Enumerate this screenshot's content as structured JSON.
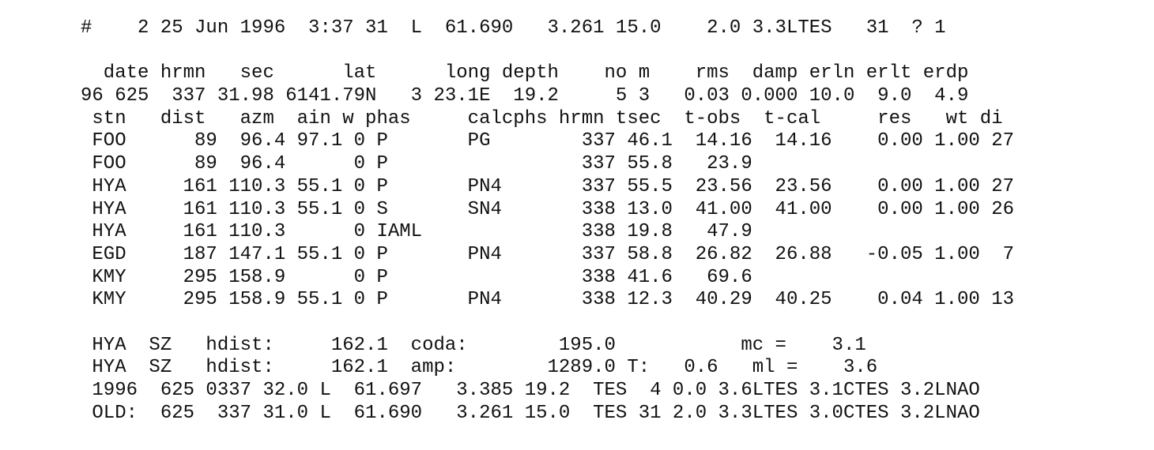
{
  "document": {
    "lines": [
      "#    2 25 Jun 1996  3:37 31  L  61.690   3.261 15.0    2.0 3.3LTES   31  ? 1",
      "",
      "  date hrmn   sec      lat      long depth    no m    rms  damp erln erlt erdp",
      "96 625  337 31.98 6141.79N   3 23.1E  19.2     5 3   0.03 0.000 10.0  9.0  4.9",
      " stn   dist   azm  ain w phas     calcphs hrmn tsec  t-obs  t-cal     res   wt di",
      " FOO      89  96.4 97.1 0 P       PG        337 46.1  14.16  14.16    0.00 1.00 27",
      " FOO      89  96.4      0 P                 337 55.8   23.9",
      " HYA     161 110.3 55.1 0 P       PN4       337 55.5  23.56  23.56    0.00 1.00 27",
      " HYA     161 110.3 55.1 0 S       SN4       338 13.0  41.00  41.00    0.00 1.00 26",
      " HYA     161 110.3      0 IAML              338 19.8   47.9",
      " EGD     187 147.1 55.1 0 P       PN4       337 58.8  26.82  26.88   -0.05 1.00  7",
      " KMY     295 158.9      0 P                 338 41.6   69.6",
      " KMY     295 158.9 55.1 0 P       PN4       338 12.3  40.29  40.25    0.04 1.00 13",
      "",
      " HYA  SZ   hdist:     162.1  coda:        195.0           mc =    3.1",
      " HYA  SZ   hdist:     162.1  amp:        1289.0 T:   0.6   ml =    3.6",
      " 1996  625 0337 32.0 L  61.697   3.385 19.2  TES  4 0.0 3.6LTES 3.1CTES 3.2LNAO",
      " OLD:  625  337 31.0 L  61.690   3.261 15.0  TES 31 2.0 3.3LTES 3.0CTES 3.2LNAO"
    ]
  }
}
